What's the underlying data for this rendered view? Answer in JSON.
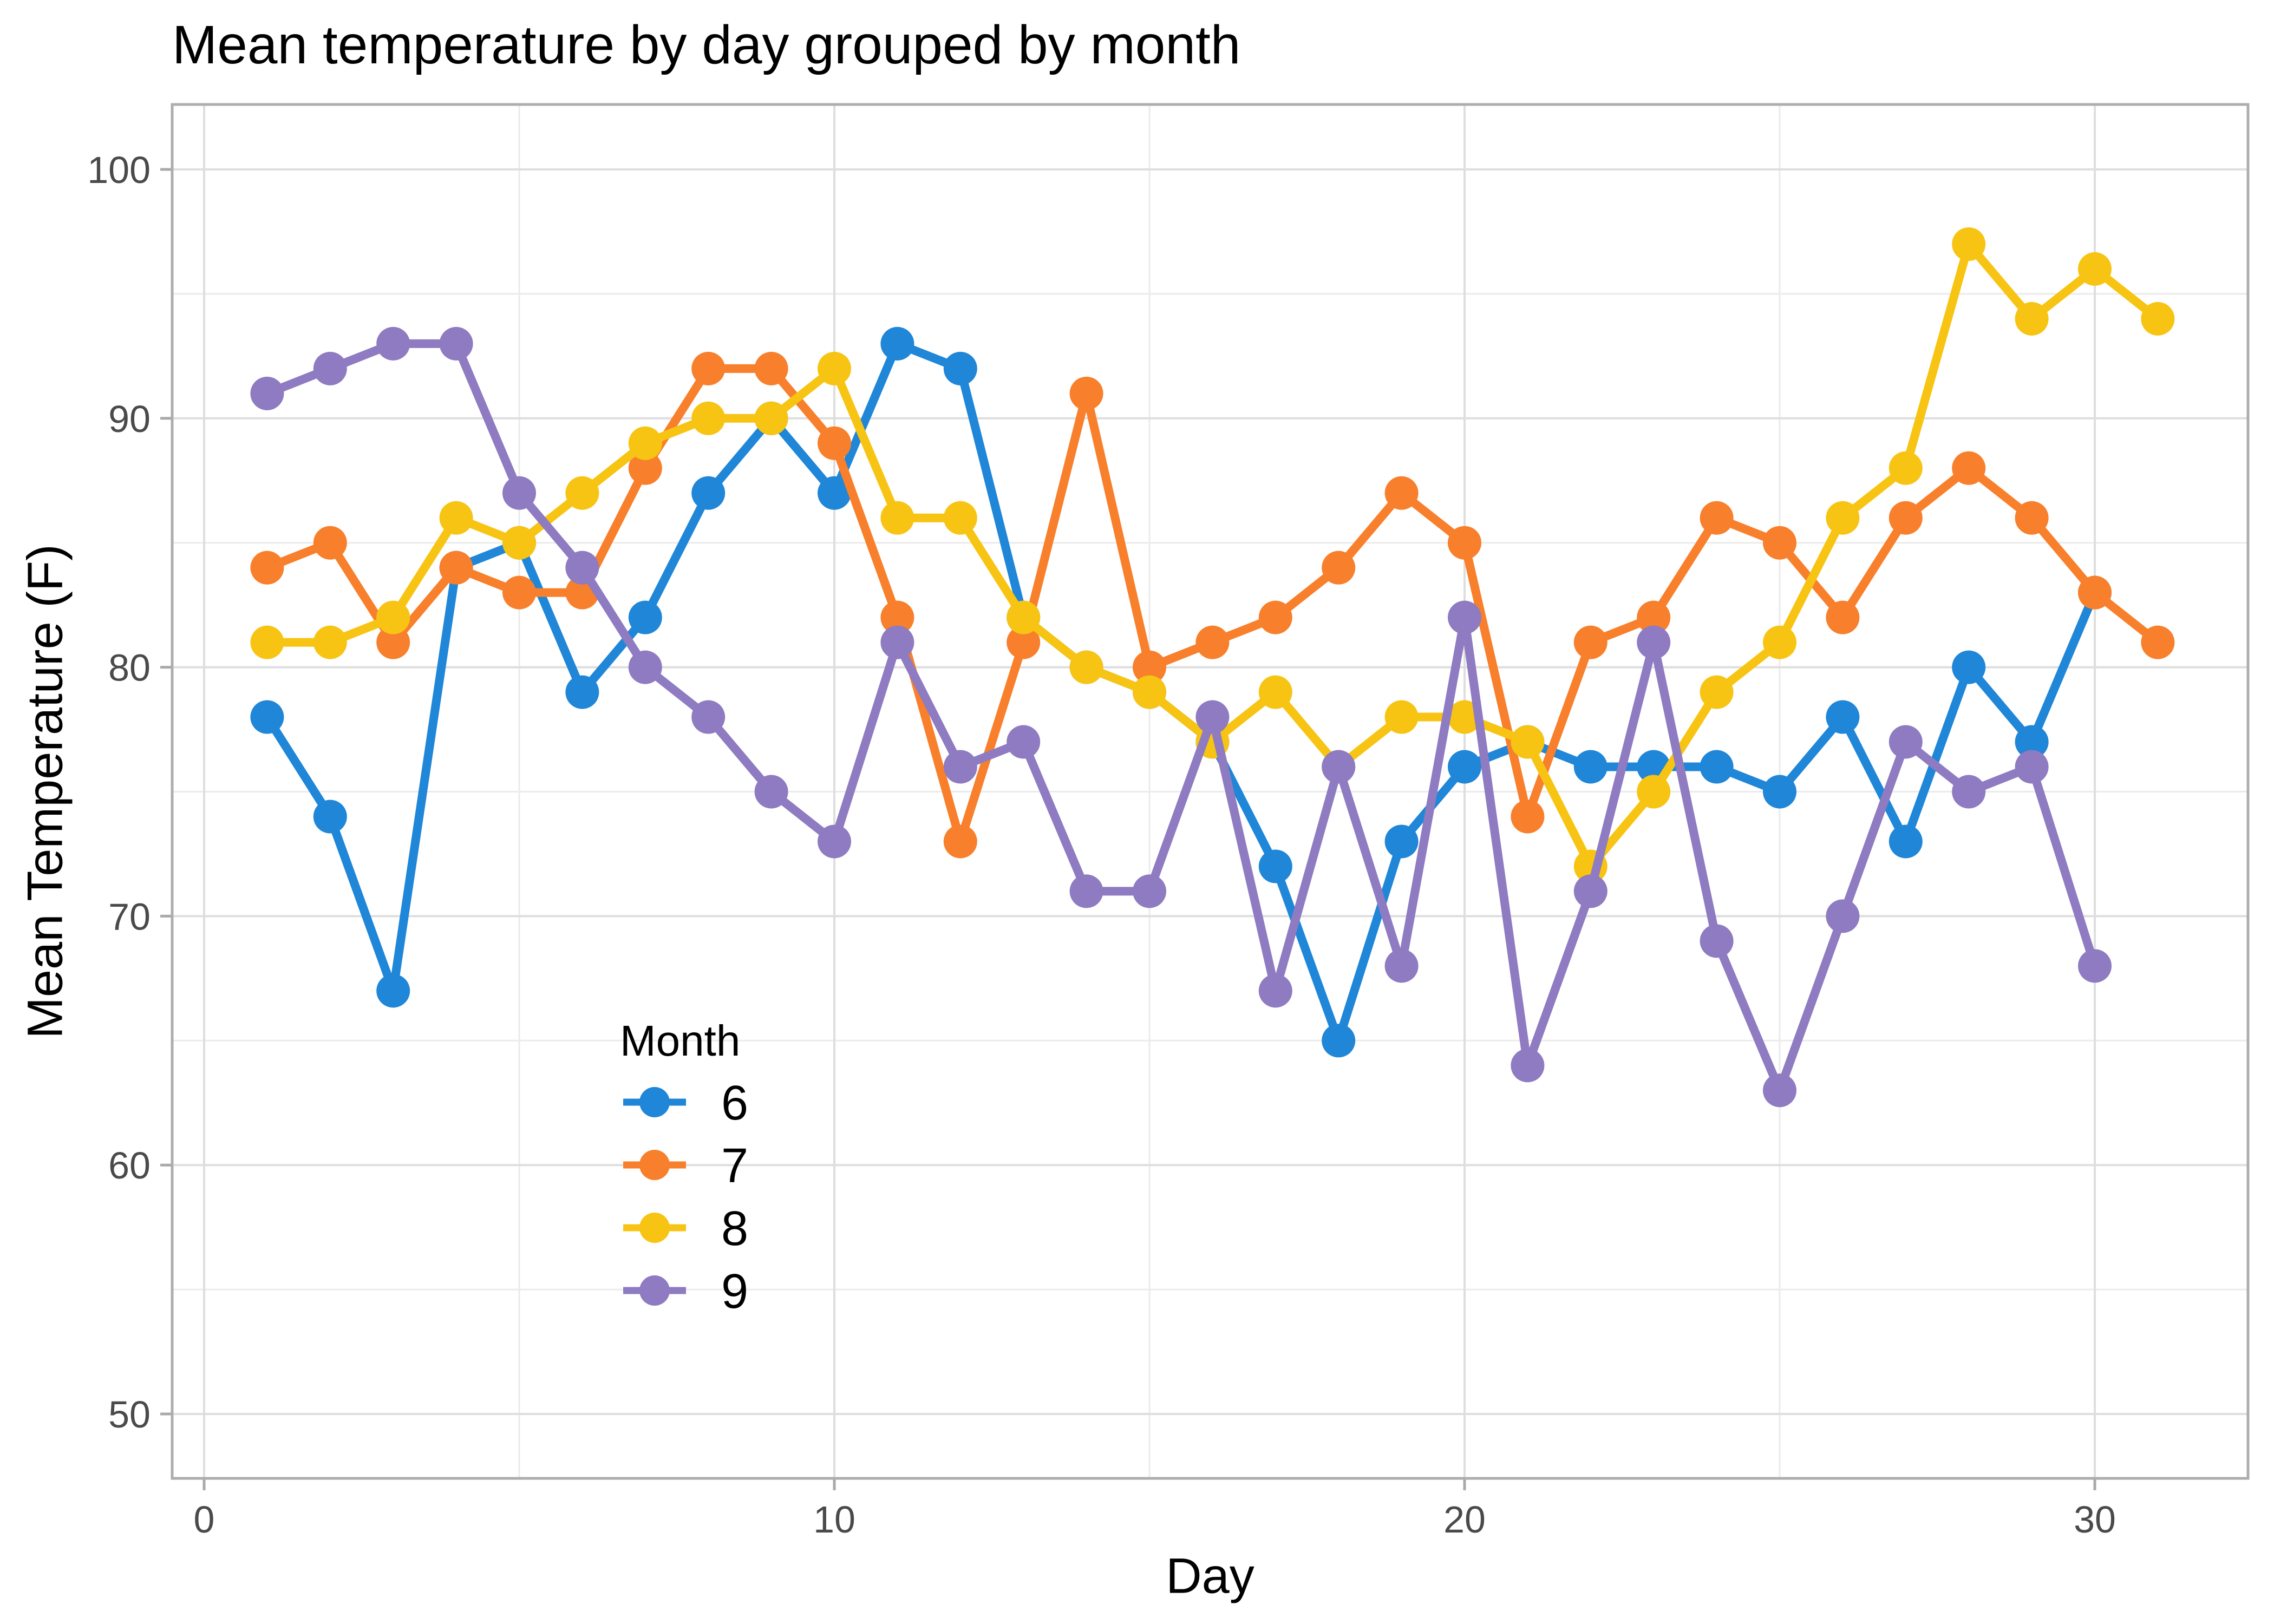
{
  "page": {
    "background": "#FFFFFF"
  },
  "chart_data": {
    "type": "line",
    "title": "Mean temperature by day grouped by month",
    "xlabel": "Day",
    "ylabel": "Mean Temperature (F)",
    "xlim": [
      -0.5,
      32.4
    ],
    "ylim": [
      47.4,
      102.6
    ],
    "x_ticks": [
      0,
      10,
      20,
      30
    ],
    "x_minor_ticks": [
      5,
      15,
      25
    ],
    "y_ticks": [
      50,
      60,
      70,
      80,
      90,
      100
    ],
    "y_minor_ticks": [
      55,
      65,
      75,
      85,
      95
    ],
    "grid": "on",
    "legend": {
      "title": "Month",
      "position": "inside-bottom-left"
    },
    "style_colors": {
      "grid_major": "#DEDEDE",
      "grid_minor": "#EBEBEB",
      "panel_border": "#ADADAD",
      "tick_mark": "#A9A9A9",
      "tick_label": "#4A4A4A",
      "text": "#000000"
    },
    "series": [
      {
        "name": "6",
        "color": "#1F86D8",
        "x": [
          1,
          2,
          3,
          4,
          5,
          6,
          7,
          8,
          9,
          10,
          11,
          12,
          13,
          14,
          15,
          16,
          17,
          18,
          19,
          20,
          21,
          22,
          23,
          24,
          25,
          26,
          27,
          28,
          29,
          30
        ],
        "y": [
          78,
          74,
          67,
          84,
          85,
          79,
          82,
          87,
          90,
          87,
          93,
          92,
          82,
          80,
          79,
          77,
          72,
          65,
          73,
          76,
          77,
          76,
          76,
          76,
          75,
          78,
          73,
          80,
          77,
          83
        ]
      },
      {
        "name": "7",
        "color": "#F87F2B",
        "x": [
          1,
          2,
          3,
          4,
          5,
          6,
          7,
          8,
          9,
          10,
          11,
          12,
          13,
          14,
          15,
          16,
          17,
          18,
          19,
          20,
          21,
          22,
          23,
          24,
          25,
          26,
          27,
          28,
          29,
          30,
          31
        ],
        "y": [
          84,
          85,
          81,
          84,
          83,
          83,
          88,
          92,
          92,
          89,
          82,
          73,
          81,
          91,
          80,
          81,
          82,
          84,
          87,
          85,
          74,
          81,
          82,
          86,
          85,
          82,
          86,
          88,
          86,
          83,
          81
        ]
      },
      {
        "name": "8",
        "color": "#F8C413",
        "x": [
          1,
          2,
          3,
          4,
          5,
          6,
          7,
          8,
          9,
          10,
          11,
          12,
          13,
          14,
          15,
          16,
          17,
          18,
          19,
          20,
          21,
          22,
          23,
          24,
          25,
          26,
          27,
          28,
          29,
          30,
          31
        ],
        "y": [
          81,
          81,
          82,
          86,
          85,
          87,
          89,
          90,
          90,
          92,
          86,
          86,
          82,
          80,
          79,
          77,
          79,
          76,
          78,
          78,
          77,
          72,
          75,
          79,
          81,
          86,
          88,
          97,
          94,
          96,
          94
        ]
      },
      {
        "name": "9",
        "color": "#8E7BC1",
        "x": [
          1,
          2,
          3,
          4,
          5,
          6,
          7,
          8,
          9,
          10,
          11,
          12,
          13,
          14,
          15,
          16,
          17,
          18,
          19,
          20,
          21,
          22,
          23,
          24,
          25,
          26,
          27,
          28,
          29,
          30
        ],
        "y": [
          91,
          92,
          93,
          93,
          87,
          84,
          80,
          78,
          75,
          73,
          81,
          76,
          77,
          71,
          71,
          78,
          67,
          76,
          68,
          82,
          64,
          71,
          81,
          69,
          63,
          70,
          77,
          75,
          76,
          68
        ]
      }
    ]
  }
}
